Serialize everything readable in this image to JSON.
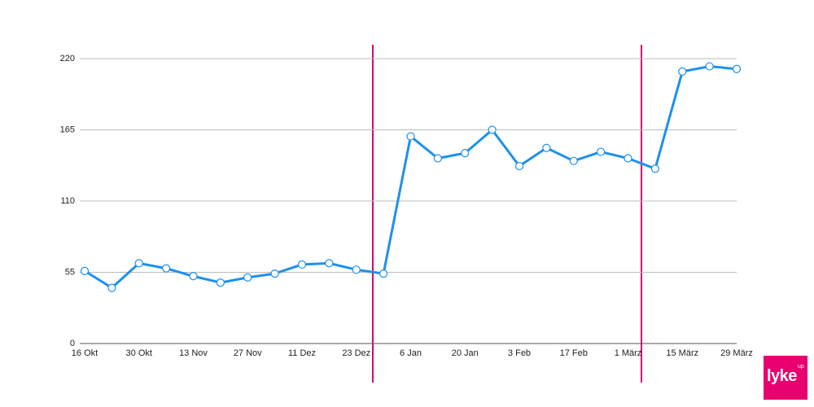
{
  "chart_data": {
    "type": "line",
    "categories": [
      "16 Okt",
      null,
      "30 Okt",
      null,
      "13 Nov",
      null,
      "27 Nov",
      null,
      "11 Dez",
      null,
      "23 Dez",
      null,
      "6 Jan",
      null,
      "20 Jan",
      null,
      "3 Feb",
      null,
      "17 Feb",
      null,
      "1 März",
      null,
      "15 März",
      null,
      "29 März"
    ],
    "series": [
      {
        "color": "#1e90ec",
        "values": [
          56,
          43,
          62,
          58,
          52,
          47,
          51,
          54,
          61,
          62,
          57,
          54,
          160,
          143,
          147,
          165,
          137,
          151,
          141,
          148,
          143,
          135,
          210,
          214,
          212
        ]
      }
    ],
    "ylim": [
      0,
      220
    ],
    "yticks": [
      0,
      55,
      110,
      165,
      220
    ],
    "grid": true
  },
  "logo": {
    "text": "lyke",
    "superscript": "up"
  }
}
